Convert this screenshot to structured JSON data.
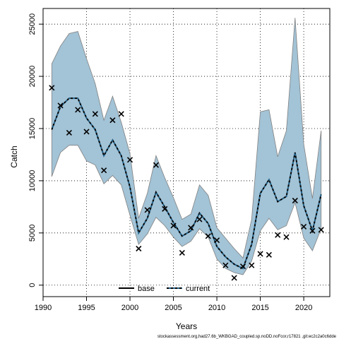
{
  "chart_data": {
    "type": "line",
    "xlabel": "Years",
    "ylabel": "Catch",
    "xlim": [
      1990,
      2023
    ],
    "ylim": [
      -1100,
      26500
    ],
    "xticks": [
      1990,
      1995,
      2000,
      2005,
      2010,
      2015,
      2020
    ],
    "yticks": [
      0,
      5000,
      10000,
      15000,
      20000,
      25000
    ],
    "grid": true,
    "legend_position": "bottom-center",
    "legend": [
      {
        "label": "base",
        "style": "solid",
        "color": "#000000"
      },
      {
        "label": "current",
        "style": "dashed",
        "color": "#000000",
        "dash_color": "#1f5f86"
      }
    ],
    "band_color": "#a3c3d6",
    "years": [
      1991,
      1992,
      1993,
      1994,
      1995,
      1996,
      1997,
      1998,
      1999,
      2000,
      2001,
      2002,
      2003,
      2004,
      2005,
      2006,
      2007,
      2008,
      2009,
      2010,
      2011,
      2012,
      2013,
      2014,
      2015,
      2016,
      2017,
      2018,
      2019,
      2020,
      2021,
      2022
    ],
    "band_upper": [
      21200,
      22900,
      24100,
      24300,
      21700,
      19300,
      15800,
      18100,
      15600,
      12600,
      6400,
      8800,
      12400,
      10300,
      8400,
      6300,
      6800,
      9600,
      8600,
      5500,
      4500,
      3500,
      2600,
      6300,
      16600,
      16800,
      12300,
      14800,
      25600,
      13500,
      8300,
      14800
    ],
    "band_lower": [
      10400,
      12700,
      13400,
      13400,
      11900,
      11500,
      9700,
      10500,
      9600,
      6700,
      3900,
      4900,
      6500,
      5700,
      4600,
      3700,
      4200,
      5400,
      4600,
      2500,
      1600,
      1200,
      1000,
      2300,
      5200,
      6400,
      5300,
      5700,
      7900,
      4500,
      3300,
      5400
    ],
    "current": [
      14900,
      17100,
      17900,
      17900,
      16000,
      14900,
      12400,
      13900,
      12400,
      9400,
      5000,
      6400,
      8900,
      7500,
      6000,
      4700,
      5200,
      6900,
      5900,
      3700,
      2700,
      2000,
      1600,
      3900,
      8800,
      10100,
      8000,
      8500,
      12700,
      7600,
      5200,
      8700
    ],
    "observed": [
      18900,
      17200,
      14600,
      16800,
      14700,
      16400,
      11000,
      15800,
      16400,
      12000,
      3500,
      7200,
      11500,
      7300,
      5700,
      3100,
      5500,
      6300,
      4700,
      4300,
      1900,
      700,
      1800,
      1900,
      3000,
      2900,
      4800,
      4600,
      8100,
      5600,
      5200,
      5300
    ],
    "source_note": "stockassessment.org,had27.6b_WKBGAD_coupled.sp.noDD.noFcor,r17821 ,git:ec2c2a0c6dde"
  }
}
